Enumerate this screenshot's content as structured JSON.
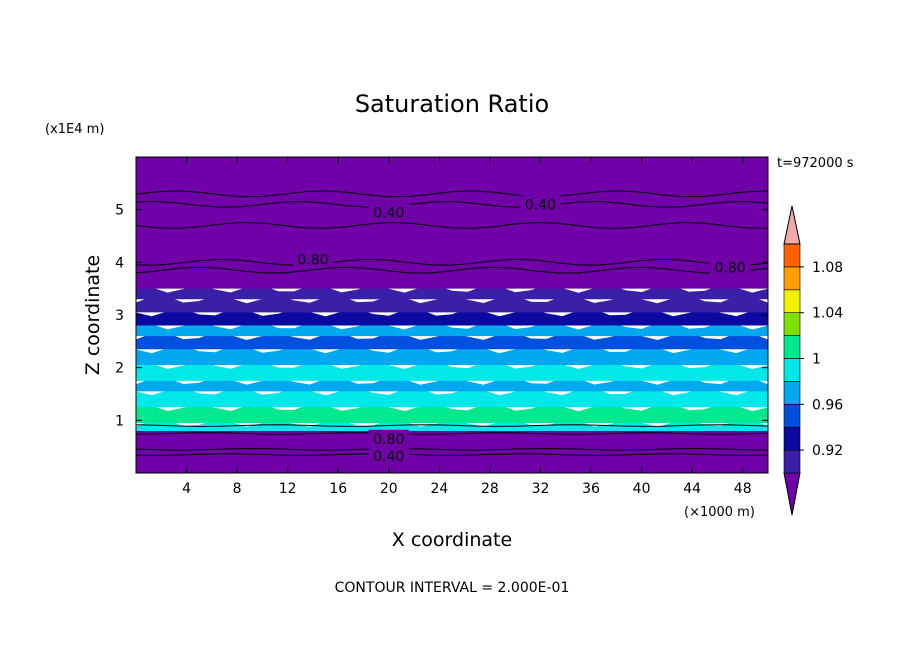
{
  "chart_data": {
    "type": "heatmap",
    "title": "Saturation Ratio",
    "xlabel": "X coordinate",
    "ylabel": "Z coordinate",
    "x_unit_label": "(×1000 m)",
    "y_unit_label": "(x1E4 m)",
    "time_label": "t=972000 s",
    "footer": "CONTOUR INTERVAL = 2.000E-01",
    "xlim": [
      0,
      50
    ],
    "ylim": [
      0,
      6
    ],
    "x_ticks": [
      4,
      8,
      12,
      16,
      20,
      24,
      28,
      32,
      36,
      40,
      44,
      48
    ],
    "y_ticks": [
      1,
      2,
      3,
      4,
      5
    ],
    "colorbar": {
      "levels": [
        0.9,
        0.92,
        0.94,
        0.96,
        0.98,
        1.0,
        1.02,
        1.04,
        1.06,
        1.08,
        1.1
      ],
      "tick_labels": [
        "0.92",
        "0.96",
        "1",
        "1.04",
        "1.08"
      ],
      "tick_values": [
        0.92,
        0.96,
        1.0,
        1.04,
        1.08
      ],
      "colors": [
        "#7000a8",
        "#3a1fa8",
        "#0a0aa0",
        "#0050e0",
        "#00a8f0",
        "#00e8e8",
        "#00e890",
        "#80e000",
        "#f0f000",
        "#ffa000",
        "#ff6000",
        "#ff2a2a",
        "#f0a8a8"
      ]
    },
    "bands": [
      {
        "z0": 0.0,
        "z1": 0.8,
        "level": 0.0
      },
      {
        "z0": 0.8,
        "z1": 0.95,
        "level": 0.99
      },
      {
        "z0": 0.95,
        "z1": 1.25,
        "level": 1.01
      },
      {
        "z0": 1.25,
        "z1": 1.55,
        "level": 0.99
      },
      {
        "z0": 1.55,
        "z1": 1.75,
        "level": 0.97
      },
      {
        "z0": 1.75,
        "z1": 2.05,
        "level": 0.99
      },
      {
        "z0": 2.05,
        "z1": 2.35,
        "level": 0.97
      },
      {
        "z0": 2.35,
        "z1": 2.6,
        "level": 0.95
      },
      {
        "z0": 2.6,
        "z1": 2.8,
        "level": 0.97
      },
      {
        "z0": 2.8,
        "z1": 3.05,
        "level": 0.93
      },
      {
        "z0": 3.05,
        "z1": 3.3,
        "level": 0.91
      },
      {
        "z0": 3.3,
        "z1": 3.5,
        "level": 0.905
      },
      {
        "z0": 3.5,
        "z1": 6.0,
        "level": 0.0
      }
    ],
    "contour_labels": [
      {
        "text": "0.40",
        "x": 20.0,
        "z": 4.95
      },
      {
        "text": "0.40",
        "x": 32.0,
        "z": 5.1
      },
      {
        "text": "0.80",
        "x": 14.0,
        "z": 4.05
      },
      {
        "text": "0.80",
        "x": 47.0,
        "z": 3.9
      },
      {
        "text": "0.80",
        "x": 20.0,
        "z": 0.65
      },
      {
        "text": "0.40",
        "x": 20.0,
        "z": 0.32
      }
    ]
  }
}
